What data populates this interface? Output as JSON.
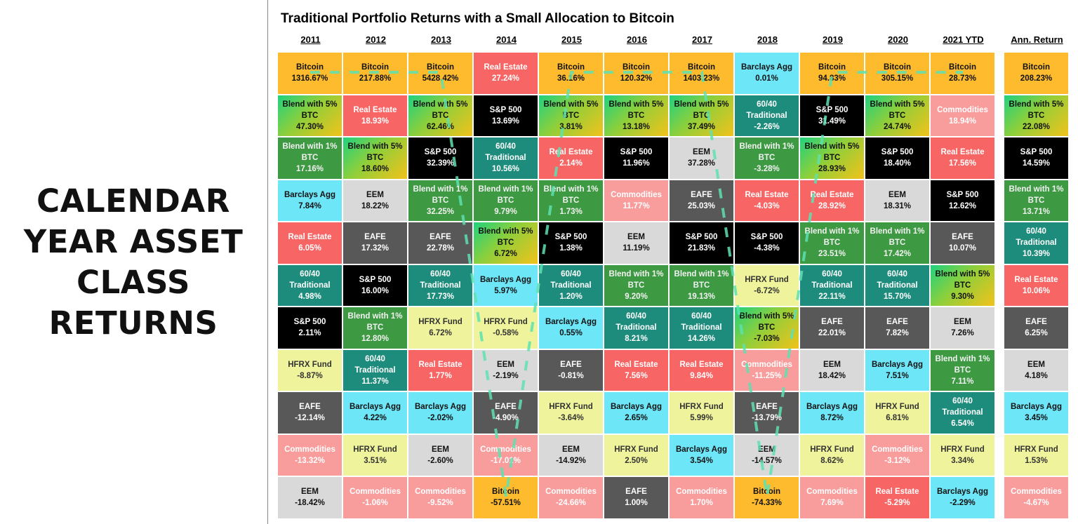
{
  "left_title": "CALENDAR YEAR ASSET CLASS RETURNS",
  "chart_data": {
    "type": "table",
    "title": "Traditional Portfolio Returns with a Small Allocation to Bitcoin",
    "asset_colors": {
      "Bitcoin": {
        "bg": "#FDBB2D",
        "fg": "#111111"
      },
      "Real Estate": {
        "bg": "#F86565",
        "fg": "#FFFFFF"
      },
      "S&P 500": {
        "bg": "#000000",
        "fg": "#FFFFFF"
      },
      "60/40 Traditional": {
        "bg": "#1E8C7C",
        "fg": "#FFFFFF"
      },
      "Blend with 5% BTC": {
        "bg": "linear-gradient(135deg,#1fd27e 0%,#8fcf3a 45%,#f2c21b 100%)",
        "fg": "#111111"
      },
      "Blend with 1% BTC": {
        "bg": "#3E9A42",
        "fg": "#F2F2F2"
      },
      "Barclays Agg": {
        "bg": "#6DE6F8",
        "fg": "#111111"
      },
      "EEM": {
        "bg": "#D9D9D9",
        "fg": "#111111"
      },
      "EAFE": {
        "bg": "#585858",
        "fg": "#FFFFFF"
      },
      "HFRX Fund": {
        "bg": "#EFF49C",
        "fg": "#333333"
      },
      "Commodities": {
        "bg": "#F99C9C",
        "fg": "#FFFFFF"
      }
    },
    "overlay_color": "#5EE0B0",
    "columns": [
      {
        "header": "2011",
        "cells": [
          {
            "asset": "Bitcoin",
            "value": "1316.67%"
          },
          {
            "asset": "Blend with 5% BTC",
            "value": "47.30%"
          },
          {
            "asset": "Blend with 1% BTC",
            "value": "17.16%"
          },
          {
            "asset": "Barclays Agg",
            "value": "7.84%"
          },
          {
            "asset": "Real Estate",
            "value": "6.05%"
          },
          {
            "asset": "60/40 Traditional",
            "value": "4.98%"
          },
          {
            "asset": "S&P 500",
            "value": "2.11%"
          },
          {
            "asset": "HFRX Fund",
            "value": "-8.87%"
          },
          {
            "asset": "EAFE",
            "value": "-12.14%"
          },
          {
            "asset": "Commodities",
            "value": "-13.32%"
          },
          {
            "asset": "EEM",
            "value": "-18.42%"
          }
        ]
      },
      {
        "header": "2012",
        "cells": [
          {
            "asset": "Bitcoin",
            "value": "217.88%"
          },
          {
            "asset": "Real Estate",
            "value": "18.93%"
          },
          {
            "asset": "Blend with 5% BTC",
            "value": "18.60%"
          },
          {
            "asset": "EEM",
            "value": "18.22%"
          },
          {
            "asset": "EAFE",
            "value": "17.32%"
          },
          {
            "asset": "S&P 500",
            "value": "16.00%"
          },
          {
            "asset": "Blend with 1% BTC",
            "value": "12.80%"
          },
          {
            "asset": "60/40 Traditional",
            "value": "11.37%"
          },
          {
            "asset": "Barclays Agg",
            "value": "4.22%"
          },
          {
            "asset": "HFRX Fund",
            "value": "3.51%"
          },
          {
            "asset": "Commodities",
            "value": "-1.06%"
          }
        ]
      },
      {
        "header": "2013",
        "cells": [
          {
            "asset": "Bitcoin",
            "value": "5428.42%"
          },
          {
            "asset": "Blend with 5% BTC",
            "value": "62.46%"
          },
          {
            "asset": "S&P 500",
            "value": "32.39%"
          },
          {
            "asset": "Blend with 1% BTC",
            "value": "32.25%"
          },
          {
            "asset": "EAFE",
            "value": "22.78%"
          },
          {
            "asset": "60/40 Traditional",
            "value": "17.73%"
          },
          {
            "asset": "HFRX Fund",
            "value": "6.72%"
          },
          {
            "asset": "Real Estate",
            "value": "1.77%"
          },
          {
            "asset": "Barclays Agg",
            "value": "-2.02%"
          },
          {
            "asset": "EEM",
            "value": "-2.60%"
          },
          {
            "asset": "Commodities",
            "value": "-9.52%"
          }
        ]
      },
      {
        "header": "2014",
        "cells": [
          {
            "asset": "Real Estate",
            "value": "27.24%"
          },
          {
            "asset": "S&P 500",
            "value": "13.69%"
          },
          {
            "asset": "60/40 Traditional",
            "value": "10.56%"
          },
          {
            "asset": "Blend with 1% BTC",
            "value": "9.79%"
          },
          {
            "asset": "Blend with 5% BTC",
            "value": "6.72%"
          },
          {
            "asset": "Barclays Agg",
            "value": "5.97%"
          },
          {
            "asset": "HFRX Fund",
            "value": "-0.58%"
          },
          {
            "asset": "EEM",
            "value": "-2.19%"
          },
          {
            "asset": "EAFE",
            "value": "-4.90%"
          },
          {
            "asset": "Commodities",
            "value": "-17.01%"
          },
          {
            "asset": "Bitcoin",
            "value": "-57.51%"
          }
        ]
      },
      {
        "header": "2015",
        "cells": [
          {
            "asset": "Bitcoin",
            "value": "36.16%"
          },
          {
            "asset": "Blend with 5% BTC",
            "value": "3.81%"
          },
          {
            "asset": "Real Estate",
            "value": "2.14%"
          },
          {
            "asset": "Blend with 1% BTC",
            "value": "1.73%"
          },
          {
            "asset": "S&P 500",
            "value": "1.38%"
          },
          {
            "asset": "60/40 Traditional",
            "value": "1.20%"
          },
          {
            "asset": "Barclays Agg",
            "value": "0.55%"
          },
          {
            "asset": "EAFE",
            "value": "-0.81%"
          },
          {
            "asset": "HFRX Fund",
            "value": "-3.64%"
          },
          {
            "asset": "EEM",
            "value": "-14.92%"
          },
          {
            "asset": "Commodities",
            "value": "-24.66%"
          }
        ]
      },
      {
        "header": "2016",
        "cells": [
          {
            "asset": "Bitcoin",
            "value": "120.32%"
          },
          {
            "asset": "Blend with 5% BTC",
            "value": "13.18%"
          },
          {
            "asset": "S&P 500",
            "value": "11.96%"
          },
          {
            "asset": "Commodities",
            "value": "11.77%"
          },
          {
            "asset": "EEM",
            "value": "11.19%"
          },
          {
            "asset": "Blend with 1% BTC",
            "value": "9.20%"
          },
          {
            "asset": "60/40 Traditional",
            "value": "8.21%"
          },
          {
            "asset": "Real Estate",
            "value": "7.56%"
          },
          {
            "asset": "Barclays Agg",
            "value": "2.65%"
          },
          {
            "asset": "HFRX Fund",
            "value": "2.50%"
          },
          {
            "asset": "EAFE",
            "value": "1.00%"
          }
        ]
      },
      {
        "header": "2017",
        "cells": [
          {
            "asset": "Bitcoin",
            "value": "1403.23%"
          },
          {
            "asset": "Blend with 5% BTC",
            "value": "37.49%"
          },
          {
            "asset": "EEM",
            "value": "37.28%"
          },
          {
            "asset": "EAFE",
            "value": "25.03%"
          },
          {
            "asset": "S&P 500",
            "value": "21.83%"
          },
          {
            "asset": "Blend with 1% BTC",
            "value": "19.13%"
          },
          {
            "asset": "60/40 Traditional",
            "value": "14.26%"
          },
          {
            "asset": "Real Estate",
            "value": "9.84%"
          },
          {
            "asset": "HFRX Fund",
            "value": "5.99%"
          },
          {
            "asset": "Barclays Agg",
            "value": "3.54%"
          },
          {
            "asset": "Commodities",
            "value": "1.70%"
          }
        ]
      },
      {
        "header": "2018",
        "cells": [
          {
            "asset": "Barclays Agg",
            "value": "0.01%"
          },
          {
            "asset": "60/40 Traditional",
            "value": "-2.26%"
          },
          {
            "asset": "Blend with 1% BTC",
            "value": "-3.28%"
          },
          {
            "asset": "Real Estate",
            "value": "-4.03%"
          },
          {
            "asset": "S&P 500",
            "value": "-4.38%"
          },
          {
            "asset": "HFRX Fund",
            "value": "-6.72%"
          },
          {
            "asset": "Blend with 5% BTC",
            "value": "-7.03%"
          },
          {
            "asset": "Commodities",
            "value": "-11.25%"
          },
          {
            "asset": "EAFE",
            "value": "-13.79%"
          },
          {
            "asset": "EEM",
            "value": "-14.57%"
          },
          {
            "asset": "Bitcoin",
            "value": "-74.33%"
          }
        ]
      },
      {
        "header": "2019",
        "cells": [
          {
            "asset": "Bitcoin",
            "value": "94.83%"
          },
          {
            "asset": "S&P 500",
            "value": "31.49%"
          },
          {
            "asset": "Blend with 5% BTC",
            "value": "28.93%"
          },
          {
            "asset": "Real Estate",
            "value": "28.92%"
          },
          {
            "asset": "Blend with 1% BTC",
            "value": "23.51%"
          },
          {
            "asset": "60/40 Traditional",
            "value": "22.11%"
          },
          {
            "asset": "EAFE",
            "value": "22.01%"
          },
          {
            "asset": "EEM",
            "value": "18.42%"
          },
          {
            "asset": "Barclays Agg",
            "value": "8.72%"
          },
          {
            "asset": "HFRX Fund",
            "value": "8.62%"
          },
          {
            "asset": "Commodities",
            "value": "7.69%"
          }
        ]
      },
      {
        "header": "2020",
        "cells": [
          {
            "asset": "Bitcoin",
            "value": "305.15%"
          },
          {
            "asset": "Blend with 5% BTC",
            "value": "24.74%"
          },
          {
            "asset": "S&P 500",
            "value": "18.40%"
          },
          {
            "asset": "EEM",
            "value": "18.31%"
          },
          {
            "asset": "Blend with 1% BTC",
            "value": "17.42%"
          },
          {
            "asset": "60/40 Traditional",
            "value": "15.70%"
          },
          {
            "asset": "EAFE",
            "value": "7.82%"
          },
          {
            "asset": "Barclays Agg",
            "value": "7.51%"
          },
          {
            "asset": "HFRX Fund",
            "value": "6.81%"
          },
          {
            "asset": "Commodities",
            "value": "-3.12%"
          },
          {
            "asset": "Real Estate",
            "value": "-5.29%"
          }
        ]
      },
      {
        "header": "2021 YTD",
        "cells": [
          {
            "asset": "Bitcoin",
            "value": "28.73%"
          },
          {
            "asset": "Commodities",
            "value": "18.94%"
          },
          {
            "asset": "Real Estate",
            "value": "17.56%"
          },
          {
            "asset": "S&P 500",
            "value": "12.62%"
          },
          {
            "asset": "EAFE",
            "value": "10.07%"
          },
          {
            "asset": "Blend with 5% BTC",
            "value": "9.30%"
          },
          {
            "asset": "EEM",
            "value": "7.26%"
          },
          {
            "asset": "Blend with 1% BTC",
            "value": "7.11%"
          },
          {
            "asset": "60/40 Traditional",
            "value": "6.54%"
          },
          {
            "asset": "HFRX Fund",
            "value": "3.34%"
          },
          {
            "asset": "Barclays Agg",
            "value": "-2.29%"
          }
        ]
      },
      {
        "header": "Ann. Return",
        "cells": [
          {
            "asset": "Bitcoin",
            "value": "208.23%"
          },
          {
            "asset": "Blend with 5% BTC",
            "value": "22.08%"
          },
          {
            "asset": "S&P 500",
            "value": "14.59%"
          },
          {
            "asset": "Blend with 1% BTC",
            "value": "13.71%"
          },
          {
            "asset": "60/40 Traditional",
            "value": "10.39%"
          },
          {
            "asset": "Real Estate",
            "value": "10.06%"
          },
          {
            "asset": "EAFE",
            "value": "6.25%"
          },
          {
            "asset": "EEM",
            "value": "4.18%"
          },
          {
            "asset": "Barclays Agg",
            "value": "3.45%"
          },
          {
            "asset": "HFRX Fund",
            "value": "1.53%"
          },
          {
            "asset": "Commodities",
            "value": "-4.67%"
          }
        ]
      }
    ]
  }
}
